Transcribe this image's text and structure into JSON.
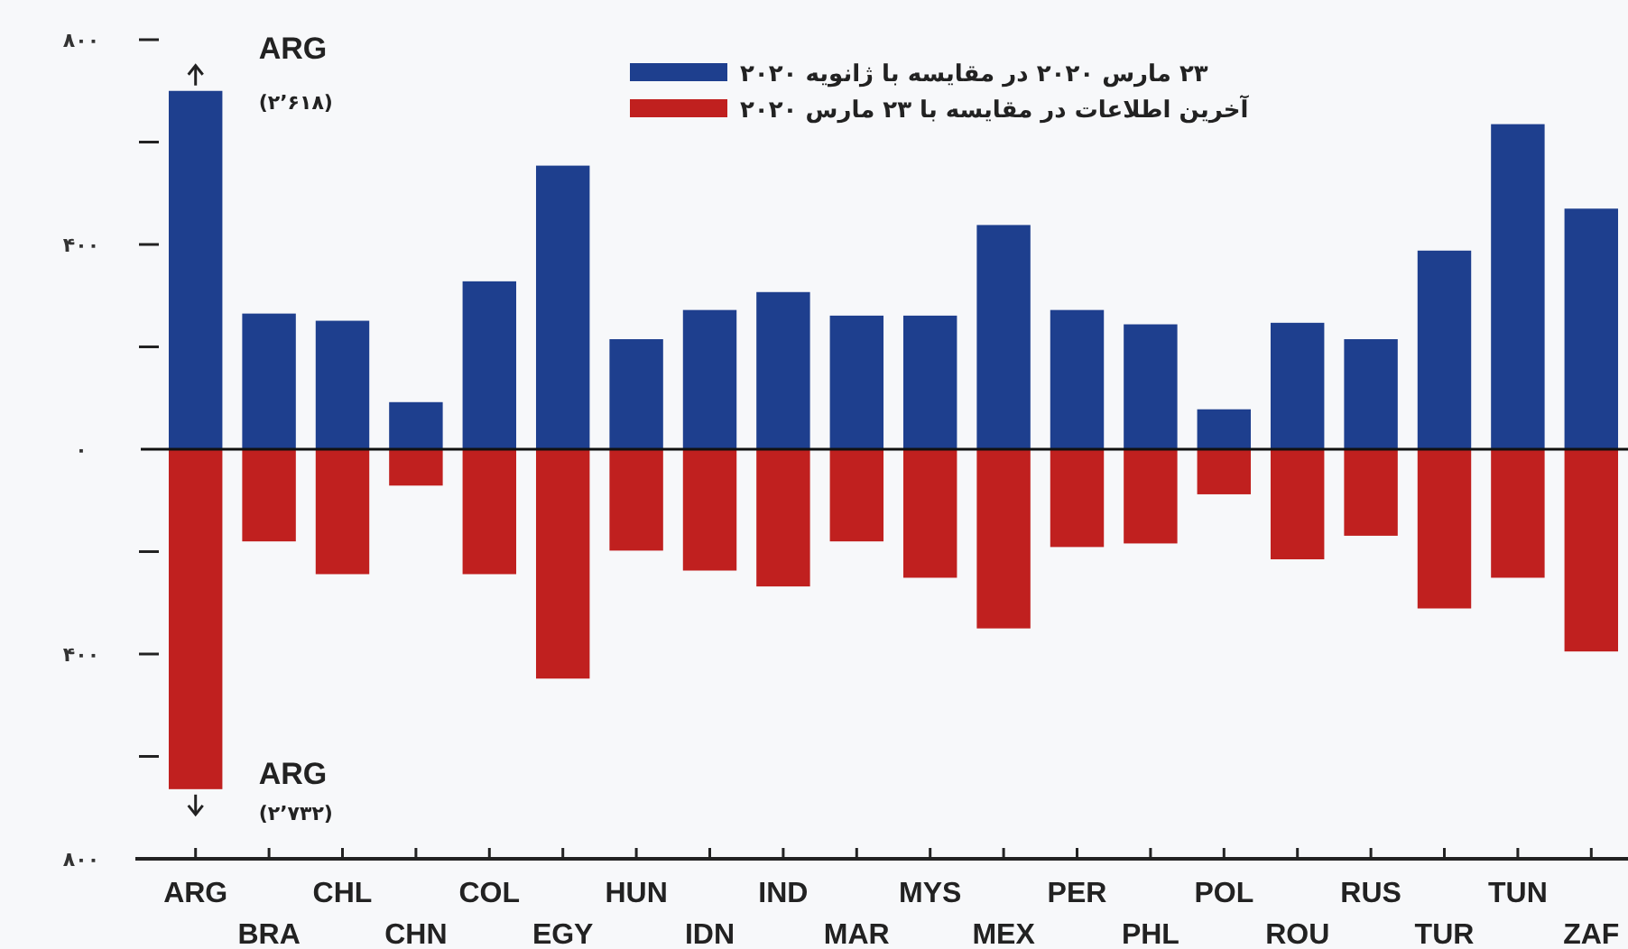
{
  "chart_data": {
    "type": "bar",
    "categories": [
      "ARG",
      "BRA",
      "CHL",
      "CHN",
      "COL",
      "EGY",
      "HUN",
      "IDN",
      "IND",
      "MAR",
      "MYS",
      "MEX",
      "PER",
      "PHL",
      "POL",
      "ROU",
      "RUS",
      "TUR",
      "TUN",
      "ZAF"
    ],
    "series": [
      {
        "name": "۲۳ مارس ۲۰۲۰ در مقایسه با ژانویه ۲۰۲۰",
        "color": "#1e3f8e",
        "values": [
          700,
          265,
          251,
          92,
          328,
          554,
          215,
          272,
          307,
          261,
          261,
          438,
          272,
          244,
          78,
          247,
          215,
          388,
          635,
          470
        ]
      },
      {
        "name": "آخرین اطلاعات در مقایسه با ۲۳ مارس ۲۰۲۰",
        "color": "#c0201f",
        "values": [
          -664,
          -180,
          -244,
          -71,
          -244,
          -448,
          -198,
          -237,
          -268,
          -180,
          -251,
          -350,
          -191,
          -184,
          -88,
          -215,
          -169,
          -311,
          -251,
          -395
        ]
      }
    ],
    "ylim": [
      -800,
      800
    ],
    "yticks": [
      {
        "value": -800,
        "label": "۸۰۰"
      },
      {
        "value": -600,
        "label": null
      },
      {
        "value": -400,
        "label": "۴۰۰"
      },
      {
        "value": -200,
        "label": null
      },
      {
        "value": 0,
        "label": "۰"
      },
      {
        "value": 200,
        "label": null
      },
      {
        "value": 400,
        "label": "۴۰۰"
      },
      {
        "value": 600,
        "label": null
      },
      {
        "value": 800,
        "label": "۸۰۰"
      }
    ],
    "legend": "top",
    "stacked": true,
    "annotations": [
      {
        "text": "ARG",
        "x": "ARG",
        "y": 700
      },
      "(۲٬۶۱۸)",
      {
        "text": "ARG",
        "x": "ARG",
        "y": -664
      },
      "(۲٬۷۳۲)"
    ]
  }
}
